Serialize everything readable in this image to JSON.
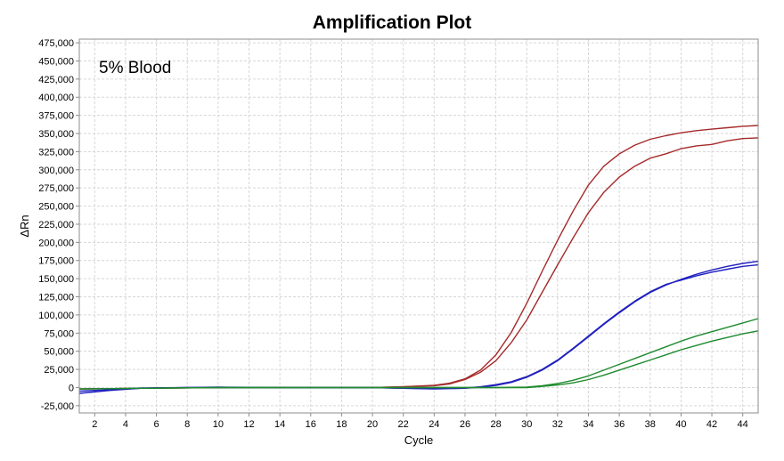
{
  "chart_data": {
    "type": "line",
    "title": "Amplification Plot",
    "annotation": "5% Blood",
    "xlabel": "Cycle",
    "ylabel": "ΔRn",
    "xlim": [
      1,
      45
    ],
    "ylim": [
      -35000,
      480000
    ],
    "xticks": [
      2,
      4,
      6,
      8,
      10,
      12,
      14,
      16,
      18,
      20,
      22,
      24,
      26,
      28,
      30,
      32,
      34,
      36,
      38,
      40,
      42,
      44
    ],
    "yticks": [
      -25000,
      0,
      25000,
      50000,
      75000,
      100000,
      125000,
      150000,
      175000,
      200000,
      225000,
      250000,
      275000,
      300000,
      325000,
      350000,
      375000,
      400000,
      425000,
      450000,
      475000
    ],
    "ytick_labels": [
      "-25,000",
      "0",
      "25,000",
      "50,000",
      "75,000",
      "100,000",
      "125,000",
      "150,000",
      "175,000",
      "200,000",
      "225,000",
      "250,000",
      "275,000",
      "300,000",
      "325,000",
      "350,000",
      "375,000",
      "400,000",
      "425,000",
      "450,000",
      "475,000"
    ],
    "grid": true,
    "colors": {
      "red": "#a52a2a",
      "blue": "#1f1fbf",
      "green": "#1e8a2e",
      "grid": "#d6d6d6",
      "axis": "#8c8c8c"
    },
    "series": [
      {
        "color": "red",
        "x": [
          1,
          5,
          10,
          15,
          20,
          22,
          24,
          25,
          26,
          27,
          28,
          29,
          30,
          31,
          32,
          33,
          34,
          35,
          36,
          37,
          38,
          39,
          40,
          41,
          42,
          43,
          44,
          45
        ],
        "y": [
          -2000,
          -1000,
          0,
          0,
          0,
          1000,
          3000,
          6000,
          12000,
          24000,
          45000,
          76000,
          116000,
          160000,
          203000,
          243000,
          279000,
          305000,
          322000,
          334000,
          342000,
          347000,
          351000,
          354000,
          356000,
          358000,
          360000,
          361000
        ]
      },
      {
        "color": "red",
        "x": [
          1,
          5,
          10,
          15,
          20,
          22,
          24,
          25,
          26,
          27,
          28,
          29,
          30,
          31,
          32,
          33,
          34,
          35,
          36,
          37,
          38,
          39,
          40,
          41,
          42,
          43,
          44,
          45
        ],
        "y": [
          -2000,
          -1000,
          0,
          0,
          0,
          1000,
          2500,
          5000,
          11000,
          21000,
          37000,
          62000,
          93000,
          131000,
          169000,
          206000,
          241000,
          269000,
          290000,
          305000,
          316000,
          322000,
          329000,
          333000,
          335000,
          340000,
          343000,
          344000
        ]
      },
      {
        "color": "blue",
        "x": [
          1,
          3,
          5,
          8,
          10,
          15,
          20,
          22,
          24,
          26,
          27,
          28,
          29,
          30,
          31,
          32,
          33,
          34,
          35,
          36,
          37,
          38,
          39,
          40,
          41,
          42,
          43,
          44,
          45
        ],
        "y": [
          -8000,
          -4000,
          -1000,
          0,
          500,
          0,
          0,
          -1000,
          -2000,
          -1000,
          500,
          3000,
          7000,
          14000,
          24000,
          37000,
          53000,
          70000,
          87000,
          103000,
          118000,
          131000,
          141000,
          149000,
          156000,
          162000,
          167000,
          171000,
          174000
        ]
      },
      {
        "color": "blue",
        "x": [
          1,
          3,
          5,
          8,
          10,
          15,
          20,
          22,
          24,
          26,
          27,
          28,
          29,
          30,
          31,
          32,
          33,
          34,
          35,
          36,
          37,
          38,
          39,
          40,
          41,
          42,
          43,
          44,
          45
        ],
        "y": [
          -5000,
          -3000,
          -500,
          0,
          0,
          0,
          0,
          -1000,
          -1500,
          -500,
          1000,
          4000,
          8000,
          15000,
          25000,
          38000,
          54000,
          71000,
          88000,
          104000,
          119000,
          132000,
          142000,
          148000,
          154000,
          159000,
          163000,
          167000,
          169000
        ]
      },
      {
        "color": "green",
        "x": [
          1,
          5,
          10,
          15,
          20,
          25,
          28,
          30,
          31,
          32,
          33,
          34,
          35,
          36,
          37,
          38,
          39,
          40,
          41,
          42,
          43,
          44,
          45
        ],
        "y": [
          -2000,
          -1000,
          0,
          0,
          0,
          0,
          0,
          500,
          2500,
          5500,
          10000,
          16000,
          24000,
          32000,
          40000,
          48000,
          56000,
          64000,
          71000,
          77000,
          83000,
          89000,
          95000
        ]
      },
      {
        "color": "green",
        "x": [
          1,
          5,
          10,
          15,
          20,
          25,
          28,
          30,
          31,
          32,
          33,
          34,
          35,
          36,
          37,
          38,
          39,
          40,
          41,
          42,
          43,
          44,
          45
        ],
        "y": [
          -2000,
          -1000,
          0,
          0,
          0,
          0,
          0,
          0,
          1500,
          3500,
          6500,
          11000,
          17000,
          24000,
          31000,
          38000,
          45000,
          52000,
          58000,
          64000,
          69000,
          74000,
          78000
        ]
      }
    ]
  }
}
